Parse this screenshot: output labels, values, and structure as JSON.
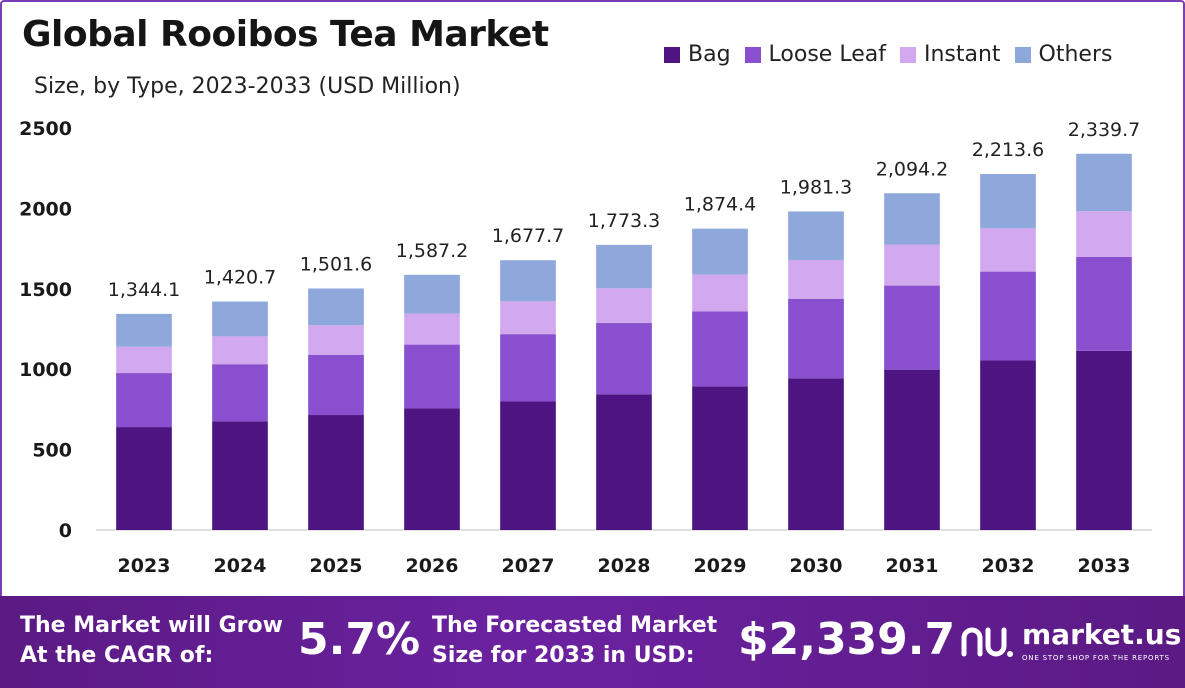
{
  "title": "Global Rooibos Tea Market",
  "subtitle": "Size, by Type, 2023-2033 (USD Million)",
  "legend": [
    {
      "name": "Bag",
      "color": "#4e1582"
    },
    {
      "name": "Loose Leaf",
      "color": "#8a4fcf"
    },
    {
      "name": "Instant",
      "color": "#d2a8ee"
    },
    {
      "name": "Others",
      "color": "#8fa8dc"
    }
  ],
  "chart_data": {
    "type": "bar",
    "stacked": true,
    "categories": [
      "2023",
      "2024",
      "2025",
      "2026",
      "2027",
      "2028",
      "2029",
      "2030",
      "2031",
      "2032",
      "2033"
    ],
    "series": [
      {
        "name": "Bag",
        "color": "#4e1582",
        "values": [
          640,
          676,
          715,
          756,
          799,
          844,
          892,
          943,
          997,
          1054,
          1114
        ]
      },
      {
        "name": "Loose Leaf",
        "color": "#8a4fcf",
        "values": [
          336,
          355,
          375,
          397,
          419,
          443,
          468,
          495,
          523,
          553,
          585
        ]
      },
      {
        "name": "Instant",
        "color": "#d2a8ee",
        "values": [
          163,
          173,
          183,
          193,
          204,
          216,
          228,
          241,
          255,
          269,
          284
        ]
      },
      {
        "name": "Others",
        "color": "#8fa8dc",
        "values": [
          205,
          217,
          229,
          241,
          256,
          270,
          286,
          302,
          319,
          338,
          357
        ]
      }
    ],
    "totals": [
      1344.1,
      1420.7,
      1501.6,
      1587.2,
      1677.7,
      1773.3,
      1874.4,
      1981.3,
      2094.2,
      2213.6,
      2339.7
    ],
    "total_labels": [
      "1,344.1",
      "1,420.7",
      "1,501.6",
      "1,587.2",
      "1,677.7",
      "1,773.3",
      "1,874.4",
      "1,981.3",
      "2,094.2",
      "2,213.6",
      "2,339.7"
    ],
    "y_ticks": [
      0,
      500,
      1000,
      1500,
      2000,
      2500
    ],
    "ylim": [
      0,
      2500
    ],
    "grid": false
  },
  "footer": {
    "cagr_line1": "The Market will Grow",
    "cagr_line2": "At the CAGR of:",
    "cagr_value": "5.7%",
    "forecast_line1": "The Forecasted Market",
    "forecast_line2": "Size for 2033 in USD:",
    "forecast_value": "$2,339.7",
    "brand": "market.us",
    "tagline": "ONE STOP SHOP FOR THE REPORTS"
  }
}
